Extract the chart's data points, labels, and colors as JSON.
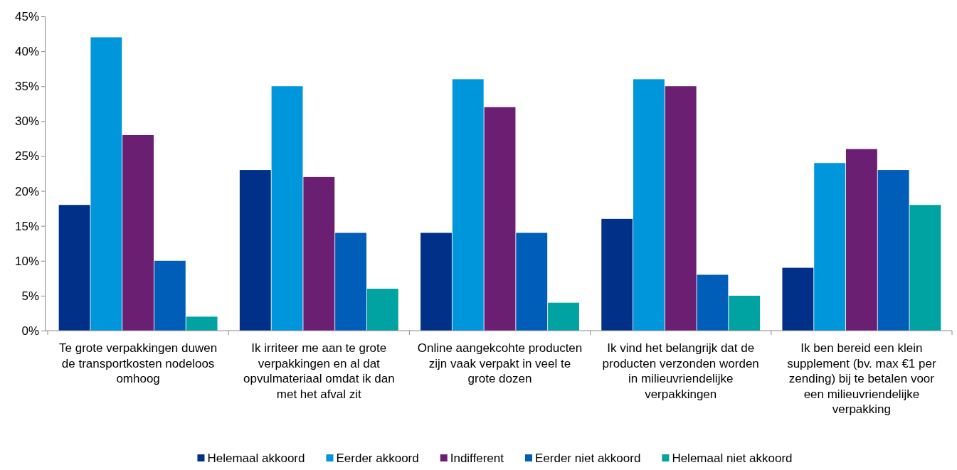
{
  "chart_data": {
    "type": "bar",
    "categories": [
      "Te grote verpakkingen duwen de transportkosten nodeloos omhoog",
      "Ik irriteer me aan te grote verpakkingen en al dat opvulmateriaal omdat ik dan met het afval zit",
      "Online aangekcohte producten zijn vaak verpakt in veel te grote dozen",
      "Ik vind het belangrijk dat de producten verzonden worden in milieuvriendelijke verpakkingen",
      "Ik ben bereid een klein supplement (bv. max €1 per zending) bij te betalen voor een milieuvriendelijke verpakking"
    ],
    "series": [
      {
        "name": "Helemaal akkoord",
        "color": "#003087",
        "values": [
          18,
          23,
          14,
          16,
          9
        ]
      },
      {
        "name": "Eerder akkoord",
        "color": "#0096db",
        "values": [
          42,
          35,
          36,
          36,
          24
        ]
      },
      {
        "name": "Indifferent",
        "color": "#6b1f73",
        "values": [
          28,
          22,
          32,
          35,
          26
        ]
      },
      {
        "name": "Eerder niet akkoord",
        "color": "#005eb8",
        "values": [
          10,
          14,
          14,
          8,
          23
        ]
      },
      {
        "name": "Helemaal niet akkoord",
        "color": "#00a3a1",
        "values": [
          2,
          6,
          4,
          5,
          18
        ]
      }
    ],
    "ylim": [
      0,
      45
    ],
    "yticks": [
      {
        "value": 0,
        "label": "0%"
      },
      {
        "value": 5,
        "label": "5%"
      },
      {
        "value": 10,
        "label": "10%"
      },
      {
        "value": 15,
        "label": "15%"
      },
      {
        "value": 20,
        "label": "20%"
      },
      {
        "value": 25,
        "label": "25%"
      },
      {
        "value": 30,
        "label": "30%"
      },
      {
        "value": 35,
        "label": "35%"
      },
      {
        "value": 40,
        "label": "40%"
      },
      {
        "value": 45,
        "label": "45%"
      }
    ],
    "grid": false,
    "legend": "bottom"
  }
}
